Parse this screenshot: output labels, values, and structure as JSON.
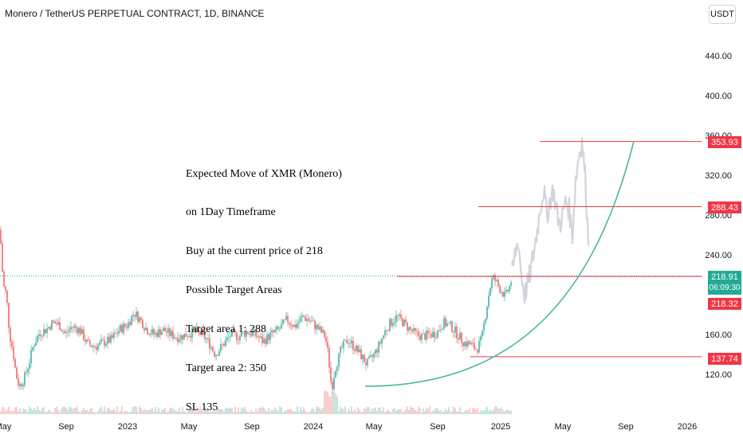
{
  "header": {
    "title": "Monero / TetherUS PERPETUAL CONTRACT, 1D, BINANCE",
    "currency_button": "USDT"
  },
  "annotation": {
    "lines": [
      "Expected Move of XMR (Monero)",
      "on 1Day Timeframe",
      "Buy at the current price of 218",
      "Possible Target Areas",
      "Target area 1: 288",
      "Target area 2: 350",
      "SL 135"
    ]
  },
  "price_axis": {
    "ticks": [
      "440.00",
      "400.00",
      "360.00",
      "320.00",
      "280.00",
      "240.00",
      "160.00",
      "120.00"
    ],
    "tick_values": [
      440,
      400,
      360,
      320,
      280,
      240,
      160,
      120
    ]
  },
  "time_axis": {
    "ticks": [
      "May",
      "Sep",
      "2023",
      "May",
      "Sep",
      "2024",
      "May",
      "Sep",
      "2025",
      "May",
      "Sep",
      "2026"
    ]
  },
  "price_labels": {
    "target2": "353.93",
    "target1": "288.43",
    "current": "218.91",
    "countdown": "06:09:30",
    "entry": "218.32",
    "stop": "137.74"
  },
  "colors": {
    "up": "#26a69a",
    "down": "#ef5350",
    "level_line": "#f23645",
    "curve": "#4db6a0",
    "current_price": "#22ab94",
    "projection": "#d1d4dc"
  },
  "chart_data": {
    "type": "candlestick",
    "symbol": "XMR/USDT",
    "timeframe": "1D",
    "y_range": [
      95,
      465
    ],
    "levels": [
      353.93,
      288.43,
      218.91,
      218.32,
      137.74
    ],
    "price_path": [
      [
        0,
        265
      ],
      [
        4,
        210
      ],
      [
        8,
        200
      ],
      [
        12,
        160
      ],
      [
        16,
        145
      ],
      [
        20,
        120
      ],
      [
        24,
        108
      ],
      [
        30,
        115
      ],
      [
        36,
        130
      ],
      [
        42,
        150
      ],
      [
        50,
        162
      ],
      [
        58,
        165
      ],
      [
        66,
        172
      ],
      [
        74,
        170
      ],
      [
        82,
        160
      ],
      [
        90,
        168
      ],
      [
        100,
        165
      ],
      [
        110,
        150
      ],
      [
        120,
        148
      ],
      [
        130,
        152
      ],
      [
        140,
        155
      ],
      [
        150,
        165
      ],
      [
        160,
        170
      ],
      [
        168,
        182
      ],
      [
        176,
        175
      ],
      [
        184,
        165
      ],
      [
        194,
        160
      ],
      [
        204,
        165
      ],
      [
        214,
        160
      ],
      [
        224,
        157
      ],
      [
        234,
        160
      ],
      [
        244,
        163
      ],
      [
        254,
        160
      ],
      [
        262,
        152
      ],
      [
        270,
        140
      ],
      [
        280,
        150
      ],
      [
        290,
        160
      ],
      [
        300,
        158
      ],
      [
        310,
        163
      ],
      [
        320,
        160
      ],
      [
        330,
        153
      ],
      [
        340,
        160
      ],
      [
        350,
        165
      ],
      [
        360,
        175
      ],
      [
        370,
        168
      ],
      [
        380,
        178
      ],
      [
        390,
        173
      ],
      [
        400,
        165
      ],
      [
        408,
        158
      ],
      [
        412,
        138
      ],
      [
        416,
        105
      ],
      [
        420,
        125
      ],
      [
        428,
        145
      ],
      [
        436,
        155
      ],
      [
        444,
        148
      ],
      [
        452,
        140
      ],
      [
        460,
        130
      ],
      [
        468,
        138
      ],
      [
        476,
        150
      ],
      [
        484,
        165
      ],
      [
        490,
        172
      ],
      [
        498,
        178
      ],
      [
        506,
        172
      ],
      [
        514,
        165
      ],
      [
        522,
        160
      ],
      [
        530,
        158
      ],
      [
        540,
        160
      ],
      [
        548,
        162
      ],
      [
        556,
        172
      ],
      [
        566,
        168
      ],
      [
        574,
        160
      ],
      [
        582,
        152
      ],
      [
        590,
        150
      ],
      [
        598,
        145
      ],
      [
        604,
        155
      ],
      [
        610,
        185
      ],
      [
        614,
        205
      ],
      [
        618,
        218
      ],
      [
        622,
        213
      ],
      [
        628,
        205
      ],
      [
        634,
        198
      ],
      [
        640,
        210
      ],
      [
        642,
        218
      ]
    ],
    "projection_path": [
      [
        642,
        218
      ],
      [
        646,
        240
      ],
      [
        650,
        255
      ],
      [
        654,
        220
      ],
      [
        658,
        200
      ],
      [
        662,
        210
      ],
      [
        666,
        225
      ],
      [
        670,
        245
      ],
      [
        674,
        265
      ],
      [
        678,
        290
      ],
      [
        682,
        305
      ],
      [
        686,
        280
      ],
      [
        690,
        295
      ],
      [
        694,
        305
      ],
      [
        698,
        285
      ],
      [
        702,
        270
      ],
      [
        706,
        280
      ],
      [
        710,
        295
      ],
      [
        714,
        285
      ],
      [
        718,
        260
      ],
      [
        722,
        315
      ],
      [
        726,
        340
      ],
      [
        730,
        354
      ],
      [
        734,
        320
      ],
      [
        738,
        255
      ]
    ],
    "curve": {
      "type": "parabolic_support",
      "start": [
        458,
        108
      ],
      "end": [
        795,
        354
      ]
    }
  }
}
